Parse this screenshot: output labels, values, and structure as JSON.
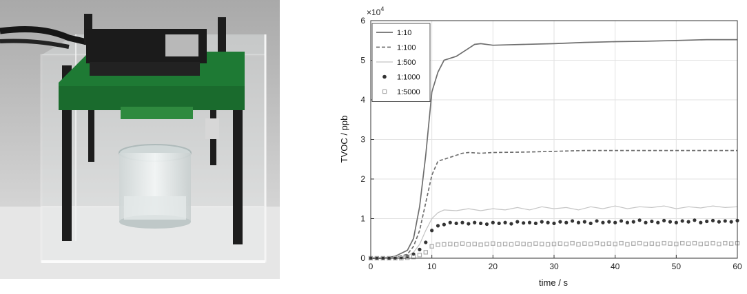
{
  "photo": {
    "description_icons": [
      "acrylic-box-icon",
      "sensor-board-icon",
      "glass-jar-icon",
      "usb-cable-icon"
    ]
  },
  "chart_data": {
    "type": "line",
    "title": "",
    "xlabel": "time / s",
    "ylabel": "TVOC / ppb",
    "y_exponent_label": "×10",
    "y_exponent_power": "4",
    "xlim": [
      0,
      60
    ],
    "ylim": [
      0,
      6
    ],
    "xticks": [
      0,
      10,
      20,
      30,
      40,
      50,
      60
    ],
    "yticks": [
      0,
      1,
      2,
      3,
      4,
      5,
      6
    ],
    "grid": true,
    "legend_position": "top-left",
    "series": [
      {
        "name": "1:10",
        "style": "solid",
        "color": "#6e6e6e",
        "x": [
          0,
          2,
          4,
          6,
          7,
          8,
          9,
          10,
          11,
          12,
          14,
          16,
          17,
          18,
          20,
          25,
          30,
          35,
          40,
          45,
          50,
          55,
          60
        ],
        "y": [
          0,
          0,
          0.05,
          0.2,
          0.5,
          1.3,
          2.6,
          4.2,
          4.7,
          5.0,
          5.1,
          5.3,
          5.4,
          5.42,
          5.38,
          5.4,
          5.42,
          5.45,
          5.47,
          5.48,
          5.5,
          5.52,
          5.52
        ]
      },
      {
        "name": "1:100",
        "style": "dashed",
        "color": "#6e6e6e",
        "x": [
          0,
          2,
          4,
          6,
          7,
          8,
          9,
          10,
          11,
          12,
          13,
          14,
          15,
          16,
          18,
          20,
          25,
          30,
          35,
          40,
          45,
          50,
          55,
          60
        ],
        "y": [
          0,
          0,
          0.02,
          0.1,
          0.3,
          0.7,
          1.4,
          2.1,
          2.45,
          2.5,
          2.55,
          2.6,
          2.65,
          2.67,
          2.65,
          2.67,
          2.68,
          2.7,
          2.72,
          2.72,
          2.72,
          2.72,
          2.72,
          2.72
        ]
      },
      {
        "name": "1:500",
        "style": "thin",
        "color": "#c4c4c4",
        "x": [
          0,
          2,
          4,
          6,
          7,
          8,
          9,
          10,
          11,
          12,
          14,
          16,
          18,
          20,
          22,
          24,
          26,
          28,
          30,
          32,
          34,
          36,
          38,
          40,
          42,
          44,
          46,
          48,
          50,
          52,
          54,
          56,
          58,
          60
        ],
        "y": [
          0,
          0,
          0.02,
          0.05,
          0.15,
          0.35,
          0.7,
          1.0,
          1.15,
          1.22,
          1.2,
          1.25,
          1.2,
          1.25,
          1.22,
          1.28,
          1.22,
          1.3,
          1.25,
          1.28,
          1.22,
          1.3,
          1.25,
          1.32,
          1.25,
          1.3,
          1.28,
          1.32,
          1.25,
          1.3,
          1.27,
          1.32,
          1.28,
          1.3
        ]
      },
      {
        "name": "1:1000",
        "style": "dots",
        "color": "#333333",
        "x": [
          0,
          1,
          2,
          3,
          4,
          5,
          6,
          7,
          8,
          9,
          10,
          11,
          12,
          13,
          14,
          15,
          16,
          17,
          18,
          19,
          20,
          21,
          22,
          23,
          24,
          25,
          26,
          27,
          28,
          29,
          30,
          31,
          32,
          33,
          34,
          35,
          36,
          37,
          38,
          39,
          40,
          41,
          42,
          43,
          44,
          45,
          46,
          47,
          48,
          49,
          50,
          51,
          52,
          53,
          54,
          55,
          56,
          57,
          58,
          59,
          60
        ],
        "y": [
          0,
          0,
          0,
          0,
          0.01,
          0.02,
          0.05,
          0.1,
          0.22,
          0.4,
          0.7,
          0.82,
          0.85,
          0.9,
          0.88,
          0.9,
          0.87,
          0.9,
          0.88,
          0.86,
          0.9,
          0.88,
          0.9,
          0.87,
          0.92,
          0.89,
          0.9,
          0.88,
          0.92,
          0.9,
          0.88,
          0.92,
          0.9,
          0.94,
          0.9,
          0.92,
          0.88,
          0.94,
          0.9,
          0.92,
          0.9,
          0.94,
          0.9,
          0.92,
          0.96,
          0.9,
          0.93,
          0.9,
          0.95,
          0.92,
          0.9,
          0.94,
          0.92,
          0.96,
          0.9,
          0.93,
          0.95,
          0.92,
          0.94,
          0.92,
          0.95
        ]
      },
      {
        "name": "1:5000",
        "style": "squares",
        "color": "#aaaaaa",
        "x": [
          0,
          1,
          2,
          3,
          4,
          5,
          6,
          7,
          8,
          9,
          10,
          11,
          12,
          13,
          14,
          15,
          16,
          17,
          18,
          19,
          20,
          21,
          22,
          23,
          24,
          25,
          26,
          27,
          28,
          29,
          30,
          31,
          32,
          33,
          34,
          35,
          36,
          37,
          38,
          39,
          40,
          41,
          42,
          43,
          44,
          45,
          46,
          47,
          48,
          49,
          50,
          51,
          52,
          53,
          54,
          55,
          56,
          57,
          58,
          59,
          60
        ],
        "y": [
          0,
          0,
          0,
          0,
          0,
          0,
          0.01,
          0.03,
          0.08,
          0.15,
          0.3,
          0.34,
          0.35,
          0.36,
          0.35,
          0.37,
          0.35,
          0.36,
          0.34,
          0.36,
          0.37,
          0.35,
          0.36,
          0.35,
          0.37,
          0.36,
          0.35,
          0.37,
          0.36,
          0.35,
          0.36,
          0.37,
          0.36,
          0.38,
          0.35,
          0.37,
          0.36,
          0.38,
          0.36,
          0.37,
          0.36,
          0.38,
          0.35,
          0.37,
          0.38,
          0.36,
          0.37,
          0.36,
          0.38,
          0.37,
          0.36,
          0.38,
          0.37,
          0.38,
          0.36,
          0.37,
          0.38,
          0.36,
          0.38,
          0.37,
          0.38
        ]
      }
    ]
  }
}
